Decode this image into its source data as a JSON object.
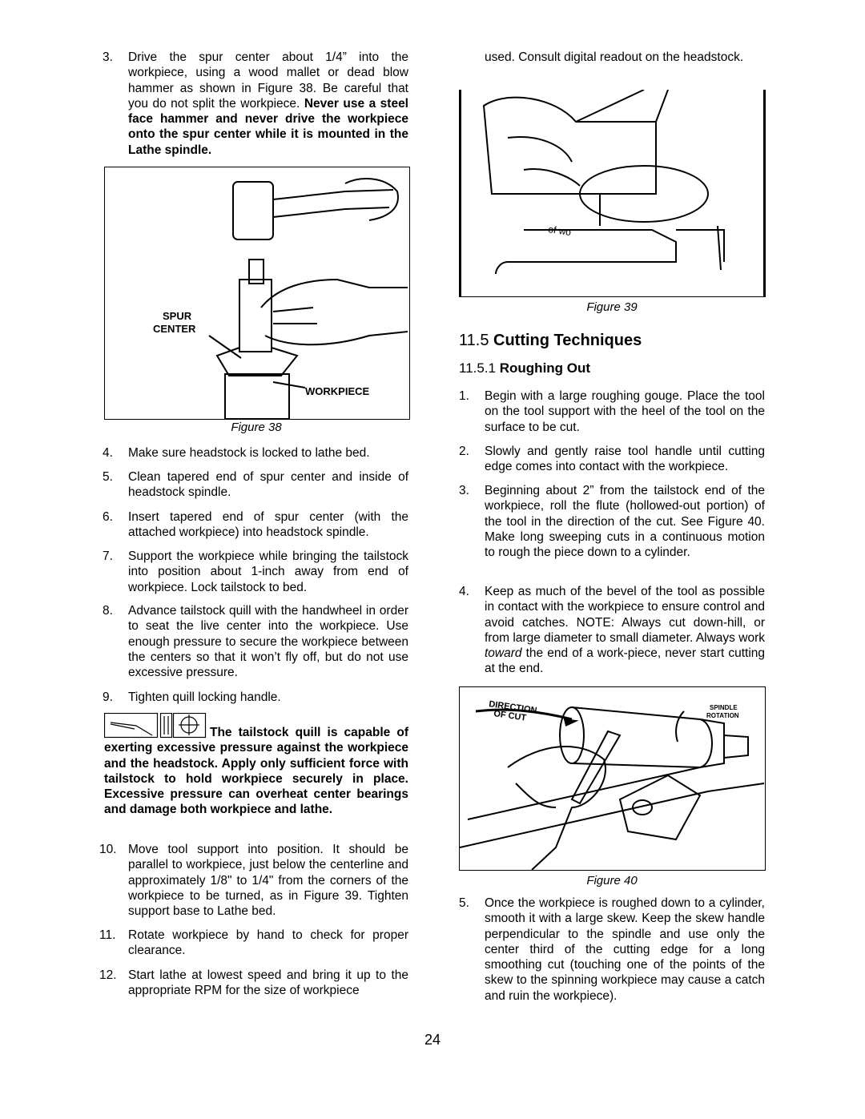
{
  "left_column": {
    "step_3": {
      "number": "3.",
      "text": "Drive the spur center about 1/4” into the workpiece, using a wood mallet or dead blow hammer as shown in Figure 38. Be careful that you do not split the workpiece.",
      "bold": "Never use a steel face hammer and never drive the workpiece onto the spur center while it is mounted in the Lathe spindle."
    },
    "figure_38": {
      "caption": "Figure 38",
      "label_spur": "SPUR",
      "label_center": "CENTER",
      "label_workpiece": "WORKPIECE"
    },
    "steps": [
      {
        "number": "4.",
        "text": "Make sure headstock is locked to lathe bed."
      },
      {
        "number": "5.",
        "text": "Clean tapered end of spur center and inside of headstock spindle."
      },
      {
        "number": "6.",
        "text": "Insert tapered end of spur center (with the attached workpiece) into headstock spindle."
      },
      {
        "number": "7.",
        "text": "Support the workpiece while bringing the tailstock into position about 1-inch away from end of workpiece. Lock tailstock to bed."
      },
      {
        "number": "8.",
        "text": "Advance tailstock quill with the handwheel in order to seat the live center into the workpiece. Use enough pressure to secure the workpiece between the centers so that it won’t fly off, but do not use excessive pressure."
      },
      {
        "number": "9.",
        "text": "Tighten quill locking handle."
      }
    ],
    "warning": "The tailstock quill is capable of exerting excessive pressure against the workpiece and the headstock. Apply only sufficient force with tailstock to hold workpiece securely in place. Excessive pressure can overheat center bearings and damage both workpiece and lathe.",
    "steps_continued": [
      {
        "number": "10.",
        "text": "Move tool support into position. It should be parallel to workpiece, just below the centerline and approximately 1/8\" to 1/4\" from the corners of the workpiece to be turned, as in Figure 39. Tighten support base to Lathe bed."
      },
      {
        "number": "11.",
        "text": "Rotate workpiece by hand to check for proper clearance."
      },
      {
        "number": "12.",
        "text": "Start lathe at lowest speed and bring it up to the appropriate RPM for the size of workpiece"
      }
    ]
  },
  "right_column": {
    "continued_text": "used. Consult digital readout on the headstock.",
    "figure_39": {
      "caption": "Figure 39",
      "label": "of wo"
    },
    "section": {
      "number": "11.5",
      "title": "Cutting Techniques"
    },
    "subsection": {
      "number": "11.5.1",
      "title": "Roughing Out"
    },
    "steps": [
      {
        "number": "1.",
        "text": "Begin with a large roughing gouge. Place the tool on the tool support with the heel of the tool on the surface to be cut."
      },
      {
        "number": "2.",
        "text": "Slowly and gently raise tool handle until cutting edge comes into contact with the workpiece."
      },
      {
        "number": "3.",
        "text": "Beginning about 2” from the tailstock end of the workpiece, roll the flute (hollowed-out portion) of the tool in the direction of the cut. See Figure 40. Make long sweeping cuts in a continuous motion to rough the piece down to a cylinder."
      },
      {
        "number": "4.",
        "text": "Keep as much of the bevel of the tool as possible in contact with the workpiece to ensure control and avoid catches. NOTE: Always cut down-hill, or from large diameter to small diameter. Always work",
        "emphasis": "toward",
        "text_after": "the end of a work-piece, never start cutting at the end."
      }
    ],
    "figure_40": {
      "caption": "Figure 40",
      "label_direction": "DIRECTION",
      "label_of_cut": "OF CUT",
      "label_spindle": "SPINDLE",
      "label_rotation": "ROTATION"
    },
    "step_5": {
      "number": "5.",
      "text": "Once the workpiece is roughed down to a cylinder, smooth it with a large skew. Keep the skew handle perpendicular to the spindle and use only the center third of the cutting edge for a long smoothing cut (touching one of the points of the skew to the spinning workpiece may cause a catch and ruin the workpiece)."
    }
  },
  "page_number": "24"
}
